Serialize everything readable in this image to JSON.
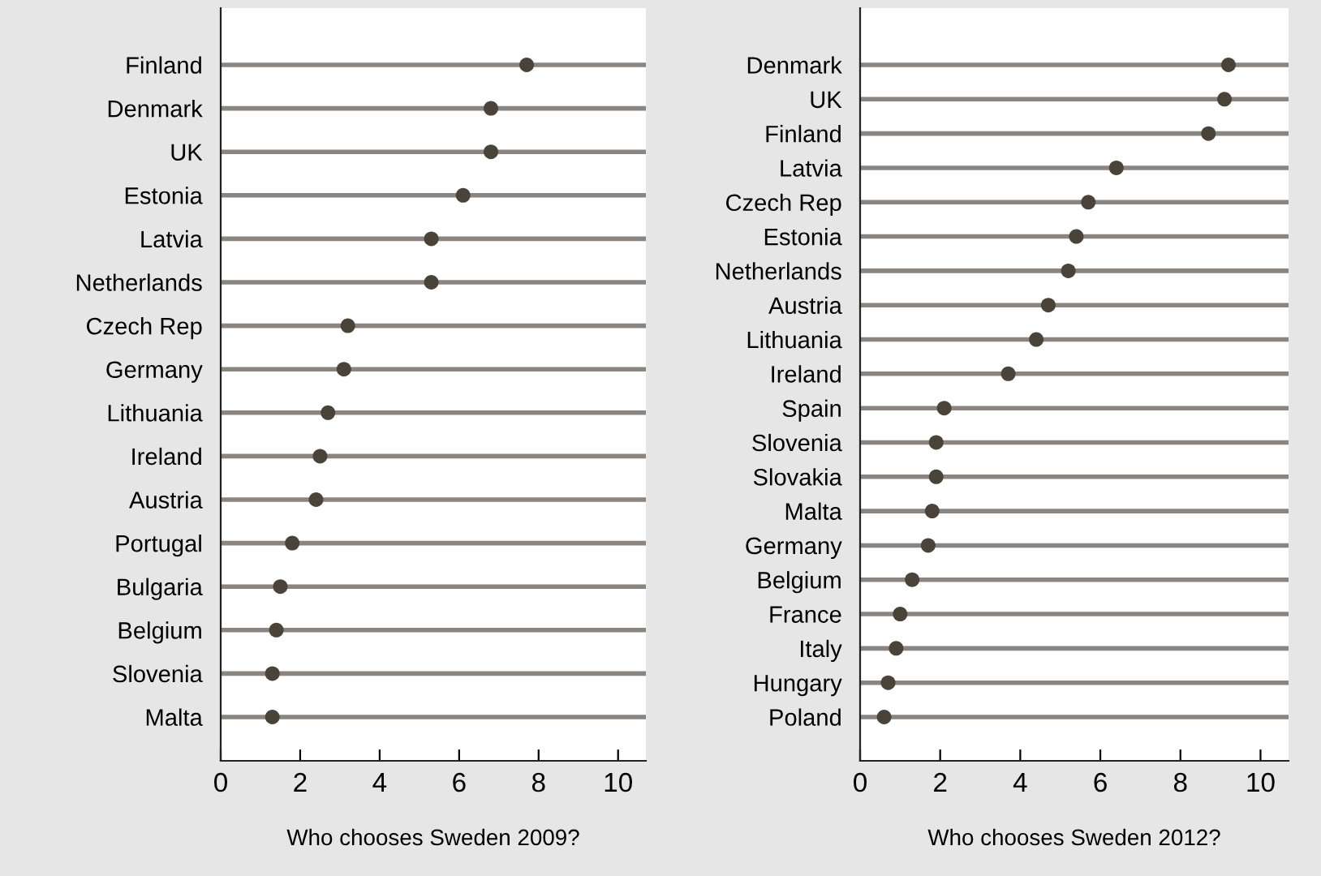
{
  "chart_data": [
    {
      "type": "scatter",
      "orientation": "horizontal",
      "xlabel": "Who chooses Sweden 2009?",
      "categories": [
        "Finland",
        "Denmark",
        "UK",
        "Estonia",
        "Latvia",
        "Netherlands",
        "Czech Rep",
        "Germany",
        "Lithuania",
        "Ireland",
        "Austria",
        "Portugal",
        "Bulgaria",
        "Belgium",
        "Slovenia",
        "Malta"
      ],
      "values": [
        7.7,
        6.8,
        6.8,
        6.1,
        5.3,
        5.3,
        3.2,
        3.1,
        2.7,
        2.5,
        2.4,
        1.8,
        1.5,
        1.4,
        1.3,
        1.3
      ],
      "color": "#4a433a",
      "xlim": [
        0,
        10.7
      ],
      "xticks": [
        0,
        2,
        4,
        6,
        8,
        10
      ],
      "grid": "y",
      "marker": "circle"
    },
    {
      "type": "scatter",
      "orientation": "horizontal",
      "xlabel": "Who chooses Sweden 2012?",
      "categories": [
        "Denmark",
        "UK",
        "Finland",
        "Latvia",
        "Czech Rep",
        "Estonia",
        "Netherlands",
        "Austria",
        "Lithuania",
        "Ireland",
        "Spain",
        "Slovenia",
        "Slovakia",
        "Malta",
        "Germany",
        "Belgium",
        "France",
        "Italy",
        "Hungary",
        "Poland"
      ],
      "values": [
        9.2,
        9.1,
        8.7,
        6.4,
        5.7,
        5.4,
        5.2,
        4.7,
        4.4,
        3.7,
        2.1,
        1.9,
        1.9,
        1.8,
        1.7,
        1.3,
        1.0,
        0.9,
        0.7,
        0.6
      ],
      "color": "#4a433a",
      "xlim": [
        0,
        10.7
      ],
      "xticks": [
        0,
        2,
        4,
        6,
        8,
        10
      ],
      "grid": "y",
      "marker": "circle"
    }
  ]
}
